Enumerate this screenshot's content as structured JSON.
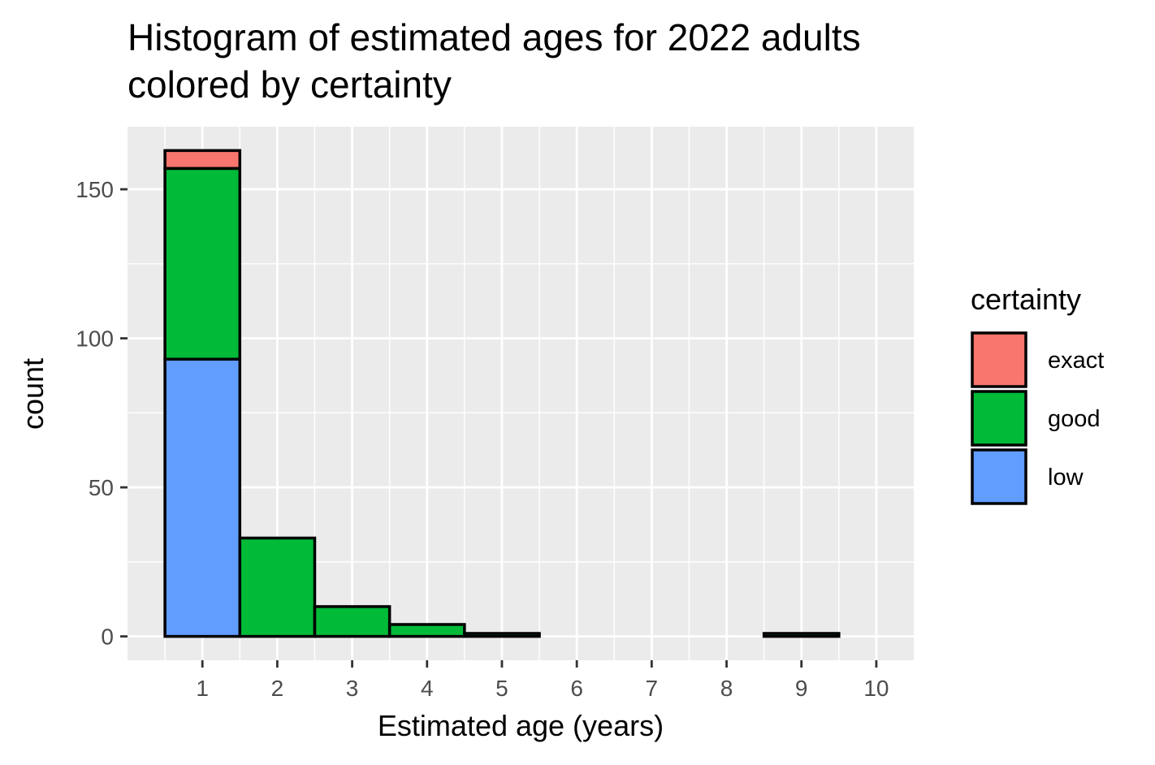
{
  "chart_data": {
    "type": "bar",
    "title": "Histogram of estimated ages for 2022 adults",
    "subtitle": "colored by certainty",
    "xlabel": "Estimated age (years)",
    "ylabel": "count",
    "x_ticks": [
      "1",
      "2",
      "3",
      "4",
      "5",
      "6",
      "7",
      "8",
      "9",
      "10"
    ],
    "y_ticks": [
      "0",
      "50",
      "100",
      "150"
    ],
    "xlim": [
      0,
      10.5
    ],
    "ylim": [
      -8,
      171
    ],
    "stacked": true,
    "grid": true,
    "legend": {
      "title": "certainty",
      "position": "right",
      "entries": [
        "exact",
        "good",
        "low"
      ]
    },
    "colors": {
      "exact": "#F8766D",
      "good": "#00BA38",
      "low": "#619CFF",
      "panel_background": "#EBEBEB",
      "grid": "#FFFFFF",
      "bar_outline": "#000000"
    },
    "categories": [
      1,
      2,
      3,
      4,
      5,
      6,
      7,
      8,
      9
    ],
    "series": [
      {
        "name": "low",
        "values": [
          93,
          0,
          0,
          0,
          0,
          0,
          0,
          0,
          0
        ]
      },
      {
        "name": "good",
        "values": [
          64,
          33,
          10,
          4,
          1,
          0,
          0,
          0,
          1
        ]
      },
      {
        "name": "exact",
        "values": [
          6,
          0,
          0,
          0,
          0,
          0,
          0,
          0,
          0
        ]
      }
    ]
  }
}
